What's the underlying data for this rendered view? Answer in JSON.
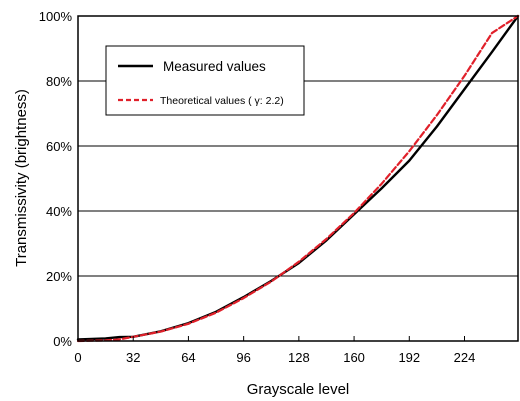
{
  "chart_data": {
    "type": "line",
    "xlabel": "Grayscale level",
    "ylabel": "Transmissivity (brightness)",
    "xlim": [
      0,
      255
    ],
    "ylim": [
      0,
      100
    ],
    "xticks": [
      0,
      32,
      64,
      96,
      128,
      160,
      192,
      224
    ],
    "xtick_labels": [
      "0",
      "32",
      "64",
      "96",
      "128",
      "160",
      "192",
      "224"
    ],
    "yticks": [
      0,
      20,
      40,
      60,
      80,
      100
    ],
    "ytick_labels": [
      "0%",
      "20%",
      "40%",
      "60%",
      "80%",
      "100%"
    ],
    "grid": "horizontal",
    "legend_position": "top-left",
    "series": [
      {
        "name": "Measured values",
        "color": "#000000",
        "style": "solid",
        "x": [
          0,
          16,
          24,
          32,
          48,
          64,
          80,
          96,
          112,
          128,
          144,
          160,
          176,
          192,
          208,
          224,
          240,
          255
        ],
        "y": [
          0.5,
          0.8,
          1.2,
          1.3,
          3.0,
          5.5,
          9.0,
          13.5,
          18.5,
          24.0,
          31.0,
          39.0,
          47.0,
          55.5,
          66.0,
          77.5,
          89.0,
          100.0
        ]
      },
      {
        "name": "Theoretical values ( γ: 2.2)",
        "color": "#e0202a",
        "style": "dashed",
        "x": [
          0,
          16,
          24,
          32,
          48,
          64,
          80,
          96,
          112,
          128,
          144,
          160,
          176,
          192,
          208,
          224,
          240,
          255
        ],
        "y": [
          0,
          0.2,
          0.5,
          1.3,
          2.9,
          5.3,
          8.7,
          13.2,
          18.3,
          24.4,
          31.4,
          39.4,
          48.4,
          58.4,
          69.5,
          81.6,
          94.8,
          100.0
        ]
      }
    ]
  }
}
